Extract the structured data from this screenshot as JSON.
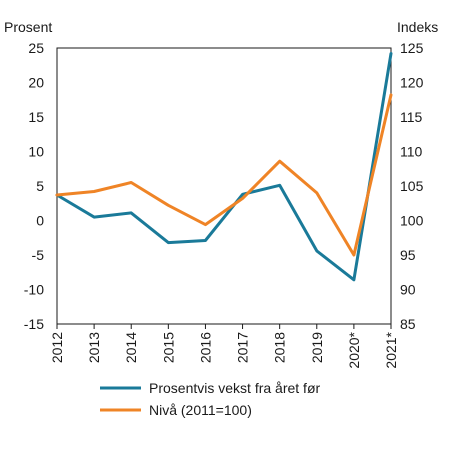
{
  "chart_data": {
    "type": "line",
    "categories": [
      "2012",
      "2013",
      "2014",
      "2015",
      "2016",
      "2017",
      "2018",
      "2019",
      "2020*",
      "2021*"
    ],
    "left_axis": {
      "label": "Prosent",
      "ylim": [
        -15,
        25
      ],
      "ticks": [
        25,
        20,
        15,
        10,
        5,
        0,
        -5,
        -10,
        -15
      ]
    },
    "right_axis": {
      "label": "Indeks",
      "ylim": [
        85,
        125
      ],
      "ticks": [
        125,
        120,
        115,
        110,
        105,
        100,
        95,
        90,
        85
      ]
    },
    "series": [
      {
        "name": "Prosentvis vekst fra året før",
        "axis": "left",
        "color": "#1a7a99",
        "values": [
          3.7,
          0.5,
          1.1,
          -3.2,
          -2.9,
          3.8,
          5.1,
          -4.4,
          -8.6,
          24.2
        ]
      },
      {
        "name": "Nivå (2011=100)",
        "axis": "right",
        "color": "#ef8426",
        "values": [
          103.7,
          104.2,
          105.5,
          102.2,
          99.4,
          103.2,
          108.6,
          104.0,
          95.0,
          118.2
        ]
      }
    ],
    "grid": false,
    "legend": "bottom"
  }
}
